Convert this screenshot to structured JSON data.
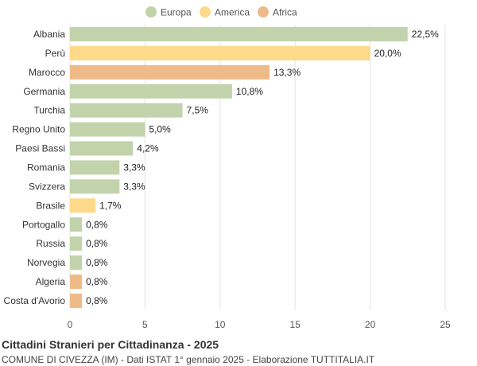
{
  "chart_data": {
    "type": "bar",
    "orientation": "horizontal",
    "categories": [
      "Albania",
      "Perù",
      "Marocco",
      "Germania",
      "Turchia",
      "Regno Unito",
      "Paesi Bassi",
      "Romania",
      "Svizzera",
      "Brasile",
      "Portogallo",
      "Russia",
      "Norvegia",
      "Algeria",
      "Costa d'Avorio"
    ],
    "values": [
      22.5,
      20.0,
      13.3,
      10.8,
      7.5,
      5.0,
      4.2,
      3.3,
      3.3,
      1.7,
      0.8,
      0.8,
      0.8,
      0.8,
      0.8
    ],
    "value_labels": [
      "22,5%",
      "20,0%",
      "13,3%",
      "10,8%",
      "7,5%",
      "5,0%",
      "4,2%",
      "3,3%",
      "3,3%",
      "1,7%",
      "0,8%",
      "0,8%",
      "0,8%",
      "0,8%",
      "0,8%"
    ],
    "groups": [
      "Europa",
      "America",
      "Africa",
      "Europa",
      "Europa",
      "Europa",
      "Europa",
      "Europa",
      "Europa",
      "America",
      "Europa",
      "Europa",
      "Europa",
      "Africa",
      "Africa"
    ],
    "legend": [
      {
        "name": "Europa",
        "color": "#c2d3ac"
      },
      {
        "name": "America",
        "color": "#fdd98a"
      },
      {
        "name": "Africa",
        "color": "#eebb88"
      }
    ],
    "legend_position": "top-center",
    "xlim": [
      0,
      25
    ],
    "xticks": [
      0,
      5,
      10,
      15,
      20,
      25
    ],
    "grid": true,
    "title": "Cittadini Stranieri per Cittadinanza - 2025",
    "subtitle": "COMUNE DI CIVEZZA (IM) - Dati ISTAT 1° gennaio 2025 - Elaborazione TUTTITALIA.IT"
  }
}
